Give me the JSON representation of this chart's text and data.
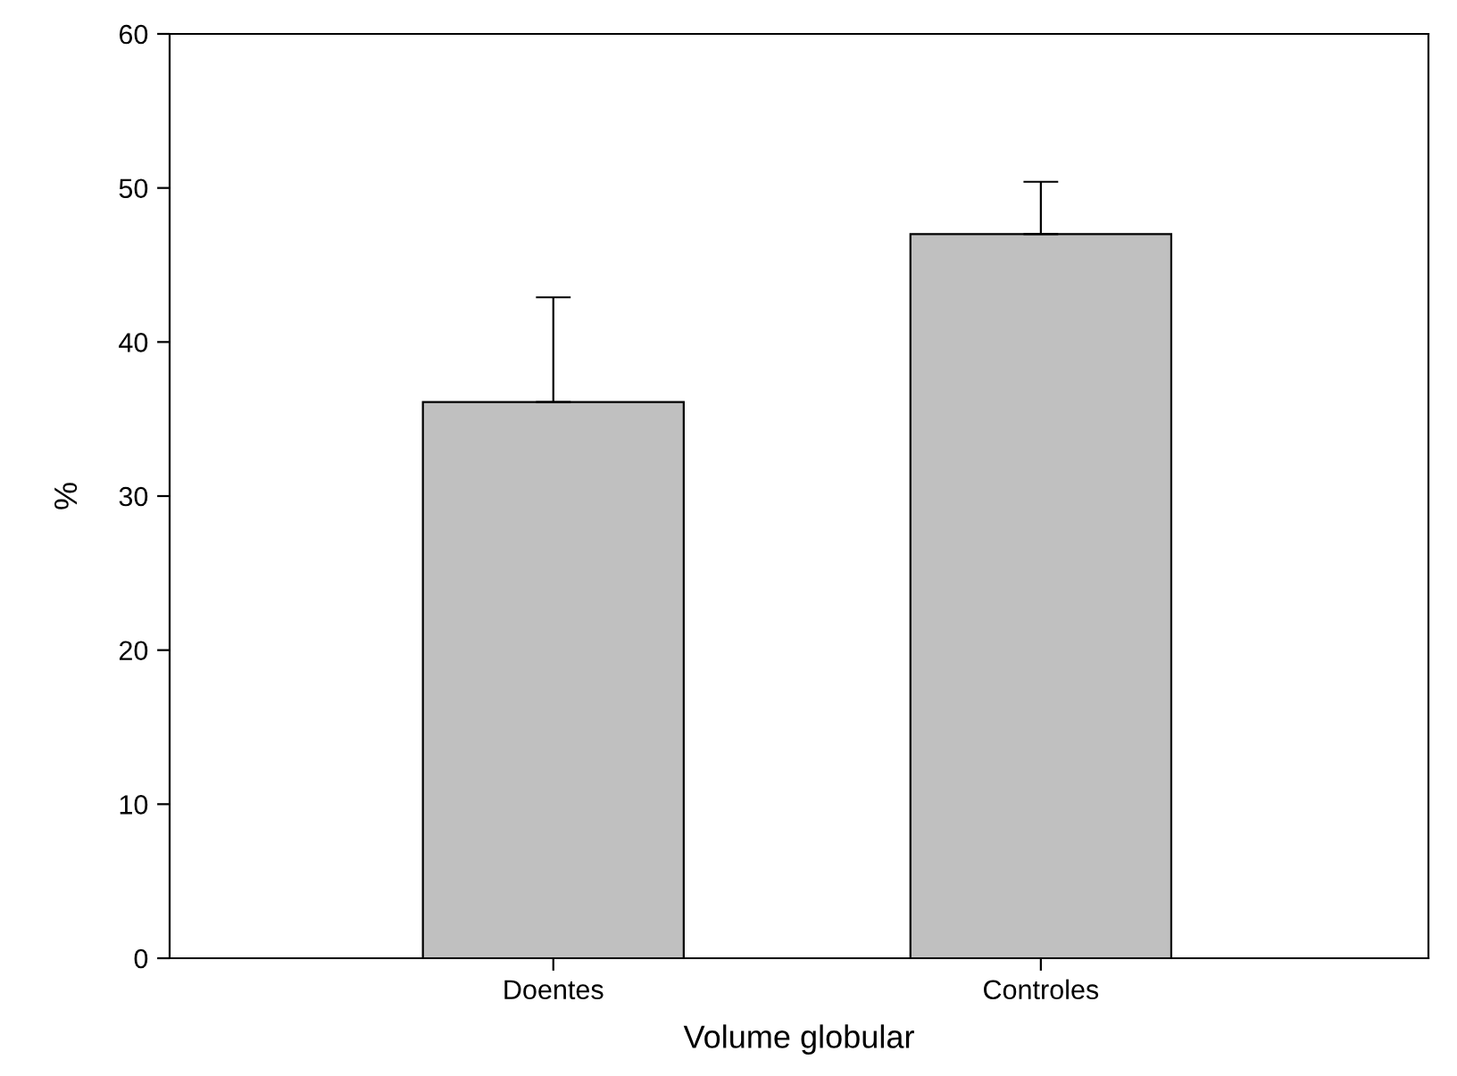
{
  "chart_data": {
    "type": "bar",
    "xlabel": "Volume globular",
    "ylabel": "%",
    "categories": [
      "Doentes",
      "Controles"
    ],
    "values": [
      36.1,
      47.0
    ],
    "errors": [
      [
        36.1,
        42.9
      ],
      [
        47.0,
        50.4
      ]
    ],
    "color": "#c0c0c0",
    "ylim": [
      0,
      60
    ],
    "yticks": [
      0,
      10,
      20,
      30,
      40,
      50,
      60
    ],
    "grid": false,
    "legend": false
  }
}
